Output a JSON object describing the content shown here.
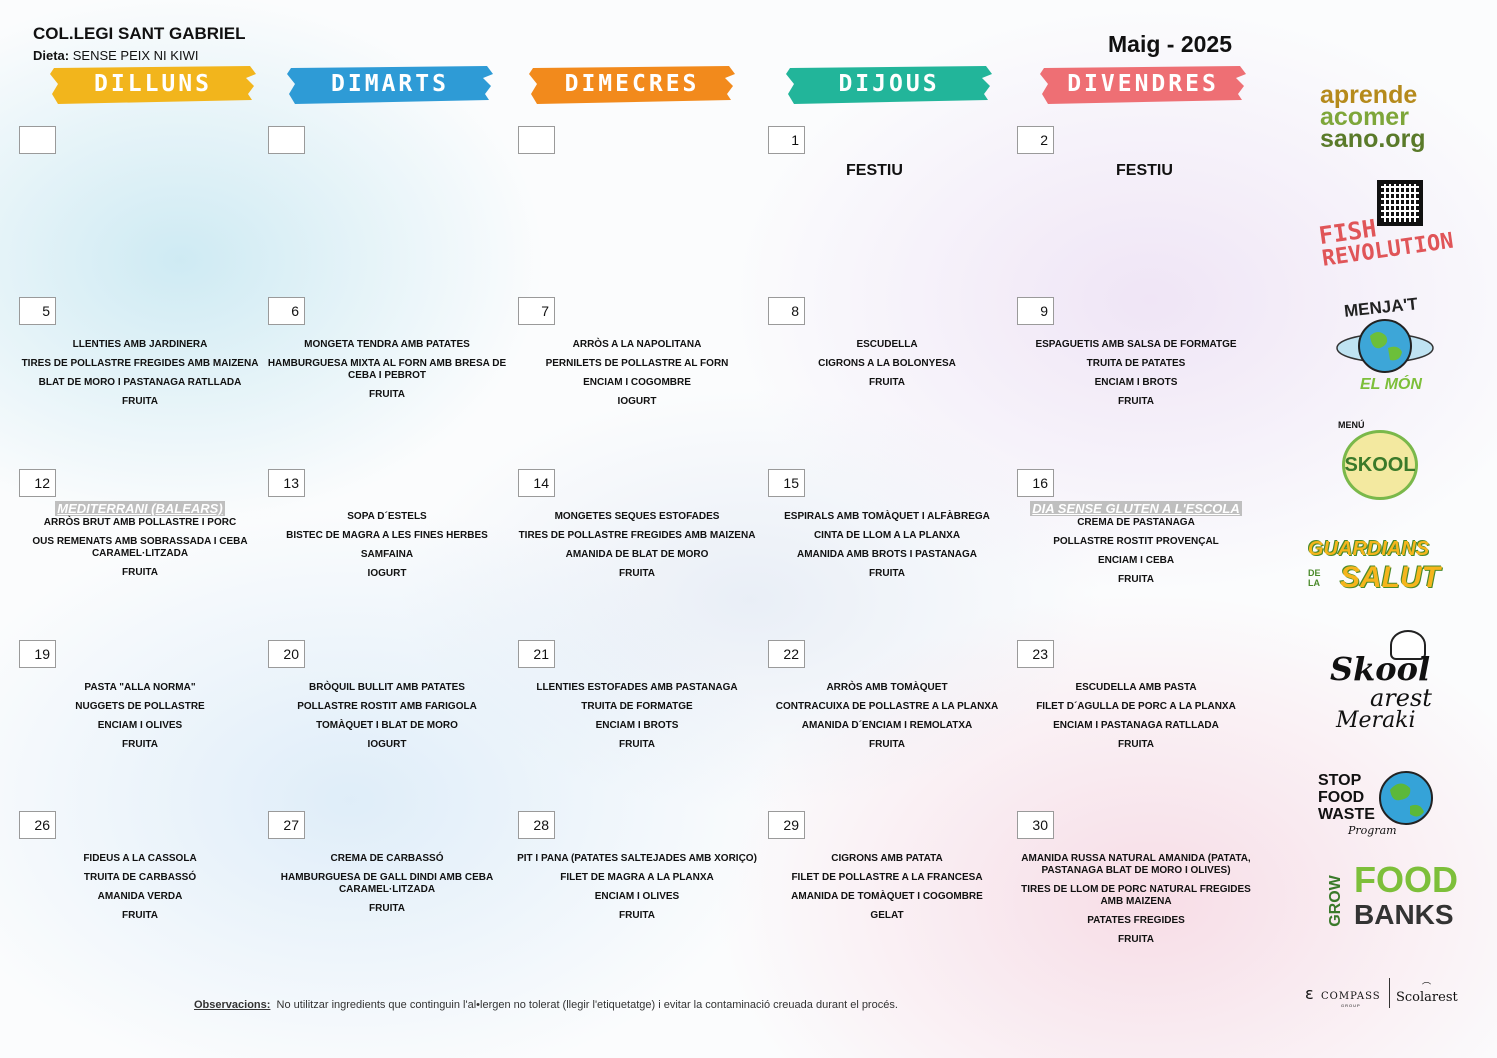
{
  "header": {
    "school": "COL.LEGI SANT GABRIEL",
    "diet_label": "Dieta:",
    "diet_value": "SENSE PEIX NI KIWI",
    "month": "Maig - 2025"
  },
  "weekdays": [
    {
      "label": "DILLUNS",
      "color": "#f2b51c"
    },
    {
      "label": "DIMARTS",
      "color": "#2e9bd6"
    },
    {
      "label": "DIMECRES",
      "color": "#f28a1c"
    },
    {
      "label": "DIJOUS",
      "color": "#22b59a"
    },
    {
      "label": "DIVENDRES",
      "color": "#ee6f74"
    }
  ],
  "days": [
    {
      "num": "",
      "items": []
    },
    {
      "num": "",
      "items": []
    },
    {
      "num": "",
      "items": []
    },
    {
      "num": "1",
      "festiu": "FESTIU",
      "items": []
    },
    {
      "num": "2",
      "festiu": "FESTIU",
      "items": []
    },
    {
      "num": "5",
      "items": [
        "LLENTIES AMB JARDINERA",
        "TIRES DE POLLASTRE FREGIDES AMB MAIZENA",
        "BLAT DE MORO I PASTANAGA RATLLADA",
        "FRUITA"
      ]
    },
    {
      "num": "6",
      "items": [
        "MONGETA TENDRA AMB PATATES",
        "HAMBURGUESA MIXTA AL FORN AMB BRESA DE CEBA I PEBROT",
        "FRUITA"
      ]
    },
    {
      "num": "7",
      "items": [
        "ARRÒS A LA NAPOLITANA",
        "PERNILETS DE POLLASTRE AL FORN",
        "ENCIAM I COGOMBRE",
        "IOGURT"
      ]
    },
    {
      "num": "8",
      "items": [
        "ESCUDELLA",
        "CIGRONS A LA BOLONYESA",
        "FRUITA"
      ]
    },
    {
      "num": "9",
      "items": [
        "ESPAGUETIS AMB SALSA DE FORMATGE",
        "TRUITA DE PATATES",
        "ENCIAM I BROTS",
        "FRUITA"
      ]
    },
    {
      "num": "12",
      "theme": "MEDITERRANI (BALEARS)",
      "items": [
        "ARRÒS BRUT AMB POLLASTRE I PORC",
        "OUS REMENATS AMB SOBRASSADA I CEBA CARAMEL·LITZADA",
        "FRUITA"
      ]
    },
    {
      "num": "13",
      "items": [
        "SOPA D´ESTELS",
        "BISTEC DE MAGRA A LES FINES HERBES",
        "SAMFAINA",
        "IOGURT"
      ]
    },
    {
      "num": "14",
      "items": [
        "MONGETES SEQUES ESTOFADES",
        "TIRES DE POLLASTRE FREGIDES AMB MAIZENA",
        "AMANIDA DE BLAT DE MORO",
        "FRUITA"
      ]
    },
    {
      "num": "15",
      "items": [
        "ESPIRALS AMB TOMÀQUET I ALFÀBREGA",
        "CINTA DE LLOM A LA PLANXA",
        "AMANIDA AMB BROTS I PASTANAGA",
        "FRUITA"
      ]
    },
    {
      "num": "16",
      "theme": "DIA SENSE GLUTEN A L'ESCOLA",
      "items": [
        "CREMA DE PASTANAGA",
        "POLLASTRE ROSTIT PROVENÇAL",
        "ENCIAM I CEBA",
        "FRUITA"
      ]
    },
    {
      "num": "19",
      "items": [
        "PASTA \"ALLA NORMA\"",
        "NUGGETS DE POLLASTRE",
        "ENCIAM I OLIVES",
        "FRUITA"
      ]
    },
    {
      "num": "20",
      "items": [
        "BRÒQUIL BULLIT AMB PATATES",
        "POLLASTRE ROSTIT AMB FARIGOLA",
        "TOMÀQUET I BLAT DE MORO",
        "IOGURT"
      ]
    },
    {
      "num": "21",
      "items": [
        "LLENTIES ESTOFADES AMB PASTANAGA",
        "TRUITA DE FORMATGE",
        "ENCIAM I BROTS",
        "FRUITA"
      ]
    },
    {
      "num": "22",
      "items": [
        "ARRÒS AMB TOMÀQUET",
        "CONTRACUIXA DE POLLASTRE A LA PLANXA",
        "AMANIDA D´ENCIAM I REMOLATXA",
        "FRUITA"
      ]
    },
    {
      "num": "23",
      "items": [
        "ESCUDELLA AMB PASTA",
        "FILET D´AGULLA DE PORC A LA PLANXA",
        "ENCIAM I PASTANAGA RATLLADA",
        "FRUITA"
      ]
    },
    {
      "num": "26",
      "items": [
        "FIDEUS A LA CASSOLA",
        "TRUITA DE CARBASSÓ",
        "AMANIDA VERDA",
        "FRUITA"
      ]
    },
    {
      "num": "27",
      "items": [
        "CREMA DE CARBASSÓ",
        "HAMBURGUESA DE GALL DINDI AMB CEBA CARAMEL·LITZADA",
        "FRUITA"
      ]
    },
    {
      "num": "28",
      "items": [
        "PIT I PANA (PATATES SALTEJADES AMB XORIÇO)",
        "FILET DE MAGRA A LA PLANXA",
        "ENCIAM I OLIVES",
        "FRUITA"
      ]
    },
    {
      "num": "29",
      "items": [
        "CIGRONS AMB PATATA",
        "FILET DE POLLASTRE A LA FRANCESA",
        "AMANIDA DE TOMÀQUET I COGOMBRE",
        "GELAT"
      ]
    },
    {
      "num": "30",
      "items": [
        "AMANIDA RUSSA NATURAL AMANIDA (PATATA, PASTANAGA BLAT DE MORO I OLIVES)",
        "TIRES DE LLOM DE PORC NATURAL FREGIDES AMB MAIZENA",
        "PATATES FREGIDES",
        "FRUITA"
      ]
    }
  ],
  "footer": {
    "label": "Observacions:",
    "text": "No utilitzar ingredients que continguin l'al•lergen no tolerat (llegir l'etiquetatge) i evitar la contaminació creuada durant el procés."
  },
  "logos": {
    "aprende": [
      "aprende",
      "acomer",
      "sano.org"
    ],
    "fish": [
      "FISH",
      "REVOLUTION"
    ],
    "menja": [
      "MENJA'T",
      "EL MÓN"
    ],
    "skool_menu": [
      "MENÚ",
      "SKOOL"
    ],
    "guardians": [
      "GUARDIANS",
      "DE LA",
      "SALUT"
    ],
    "skoolarest": [
      "Skool",
      "arest",
      "Meraki"
    ],
    "stopfood": [
      "STOP",
      "FOOD",
      "WASTE",
      "Program"
    ],
    "growfood": [
      "GROW",
      "FOOD",
      "BANKS"
    ],
    "compass": "COMPASS",
    "compass_sub": "GROUP",
    "scolarest": "Scolarest"
  }
}
